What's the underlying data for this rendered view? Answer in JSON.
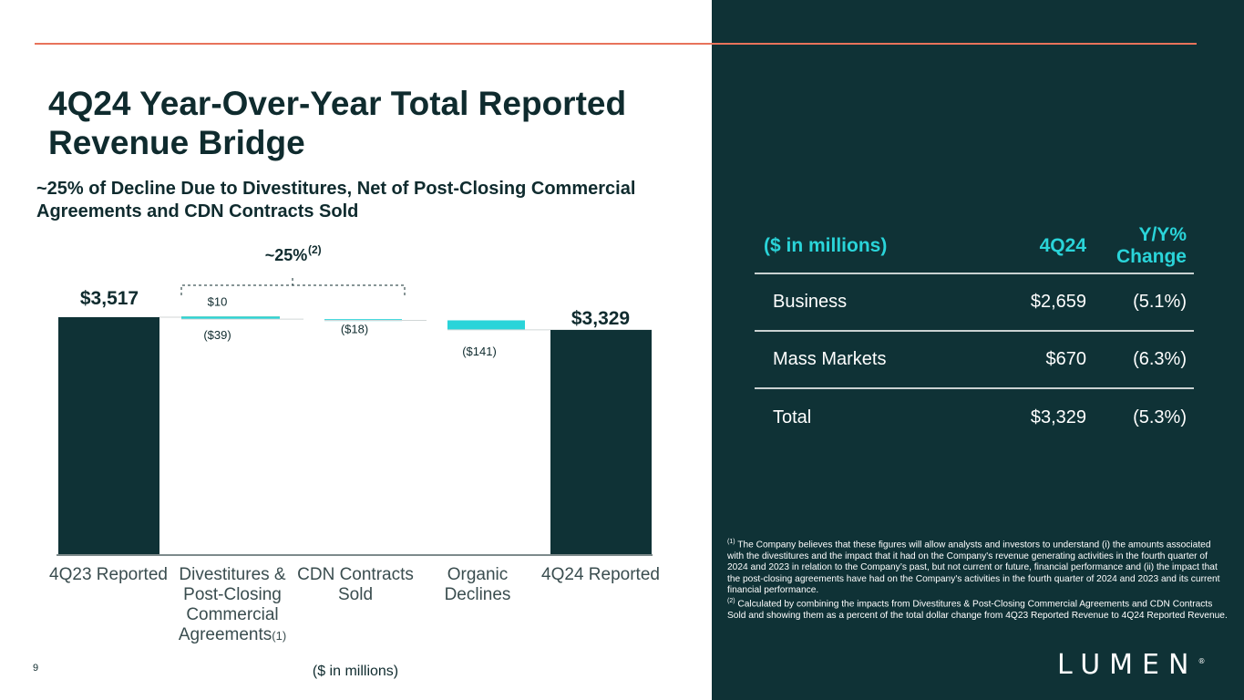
{
  "page": {
    "title": "4Q24 Year-Over-Year Total Reported Revenue Bridge",
    "subtitle": "~25% of Decline Due to Divestitures, Net of Post-Closing Commercial Agreements and CDN Contracts Sold",
    "page_number": "9",
    "logo": "LUMEN",
    "logo_mark": "®"
  },
  "chart_data": {
    "type": "bar",
    "subtype": "waterfall",
    "title": "4Q24 Year-Over-Year Total Reported Revenue Bridge",
    "ylabel": "($ in millions)",
    "categories": [
      "4Q23 Reported",
      "Divestitures & Post-Closing Commercial Agreements(1)",
      "CDN Contracts Sold",
      "Organic Declines",
      "4Q24 Reported"
    ],
    "category_labels": [
      {
        "text": "4Q23 Reported",
        "mark": ""
      },
      {
        "text": "Divestitures & Post-Closing Commercial Agreements",
        "mark": "(1)"
      },
      {
        "text": "CDN Contracts Sold",
        "mark": ""
      },
      {
        "text": "Organic Declines",
        "mark": ""
      },
      {
        "text": "4Q24 Reported",
        "mark": ""
      }
    ],
    "start": {
      "label": "$3,517",
      "value": 3517
    },
    "end": {
      "label": "$3,329",
      "value": 3329
    },
    "steps": [
      {
        "category": "Divestitures & Post-Closing Commercial Agreements",
        "segments": [
          {
            "name": "Post-Closing Commercial Agreements",
            "value": 10,
            "label": "$10",
            "color": "#f5a623"
          },
          {
            "name": "Divestitures",
            "value": -39,
            "label": "($39)",
            "color": "#2ad4d9"
          }
        ]
      },
      {
        "category": "CDN Contracts Sold",
        "segments": [
          {
            "name": "CDN Contracts Sold",
            "value": -18,
            "label": "($18)",
            "color": "#2ad4d9"
          }
        ]
      },
      {
        "category": "Organic Declines",
        "segments": [
          {
            "name": "Organic Declines",
            "value": -141,
            "label": "($141)",
            "color": "#2ad4d9"
          }
        ]
      }
    ],
    "annotation": {
      "text": "~25%",
      "superscript": "(2)",
      "spans": [
        "Divestitures & Post-Closing Commercial Agreements",
        "CDN Contracts Sold"
      ]
    },
    "colors": {
      "total": "#0f3236",
      "decline": "#2ad4d9",
      "increase": "#f5a623"
    }
  },
  "table": {
    "headers": [
      "($ in millions)",
      "4Q24",
      "Y/Y% Change"
    ],
    "rows": [
      {
        "segment": "Business",
        "value": "$2,659",
        "change": "(5.1%)"
      },
      {
        "segment": "Mass Markets",
        "value": "$670",
        "change": "(6.3%)"
      },
      {
        "segment": "Total",
        "value": "$3,329",
        "change": "(5.3%)"
      }
    ]
  },
  "footnotes": [
    {
      "mark": "(1)",
      "text": "The Company believes that these figures will allow analysts and investors to understand (i) the amounts associated with the divestitures and the impact that it had on the Company's revenue generating activities in the fourth quarter of 2024 and 2023 in relation to the Company’s past, but not current or future, financial performance and (ii) the impact that the post-closing agreements have had on the Company's activities in the fourth quarter of 2024 and 2023 and its current financial performance."
    },
    {
      "mark": "(2)",
      "text": "Calculated by combining the impacts from Divestitures & Post-Closing Commercial Agreements and CDN Contracts Sold and showing them as a percent of the total dollar change from 4Q23 Reported Revenue to 4Q24 Reported Revenue."
    }
  ]
}
